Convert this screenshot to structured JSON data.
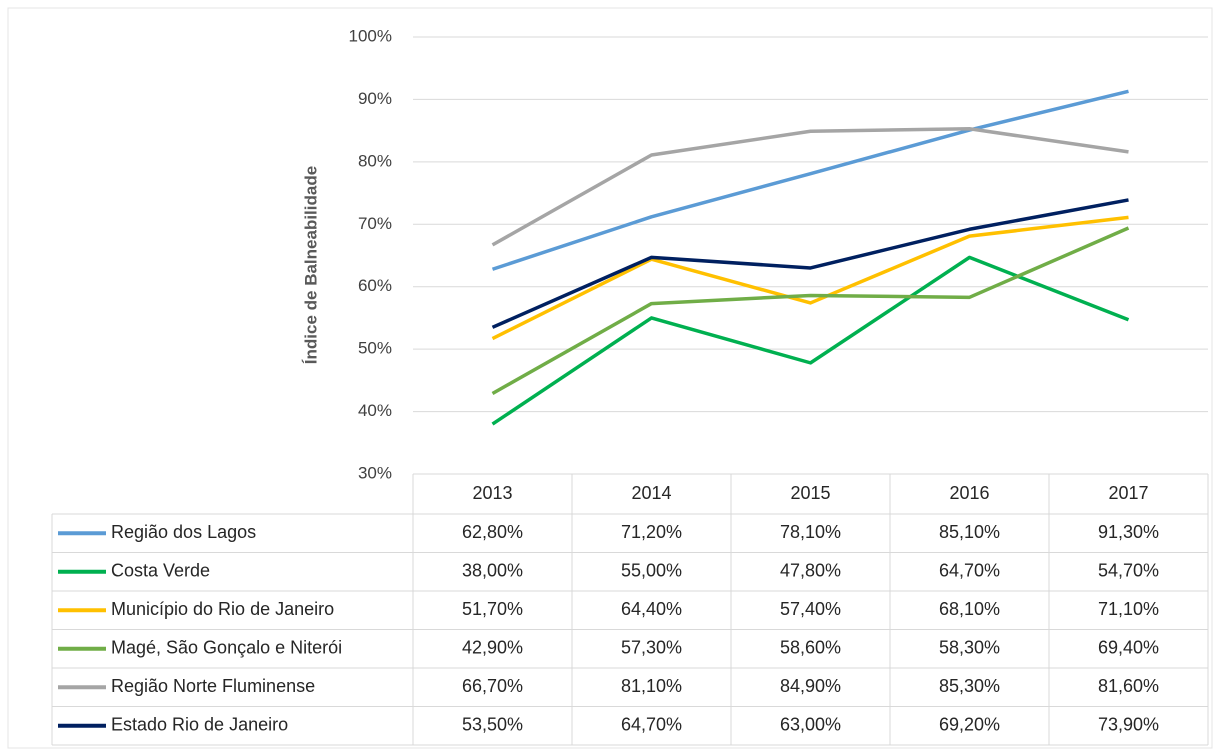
{
  "chart_data": {
    "type": "line",
    "y_label": "Índice de Balneabilidade",
    "categories": [
      "2013",
      "2014",
      "2015",
      "2016",
      "2017"
    ],
    "ylim": [
      30,
      100
    ],
    "yticks": [
      {
        "value": 30,
        "label": "30%"
      },
      {
        "value": 40,
        "label": "40%"
      },
      {
        "value": 50,
        "label": "50%"
      },
      {
        "value": 60,
        "label": "60%"
      },
      {
        "value": 70,
        "label": "70%"
      },
      {
        "value": 80,
        "label": "80%"
      },
      {
        "value": 90,
        "label": "90%"
      },
      {
        "value": 100,
        "label": "100%"
      }
    ],
    "grid": true,
    "series": [
      {
        "name": "Região dos Lagos",
        "color": "#5b9bd5",
        "values": [
          62.8,
          71.2,
          78.1,
          85.1,
          91.3
        ],
        "value_labels": [
          "62,80%",
          "71,20%",
          "78,10%",
          "85,10%",
          "91,30%"
        ]
      },
      {
        "name": "Costa Verde",
        "color": "#00b050",
        "values": [
          38.0,
          55.0,
          47.8,
          64.7,
          54.7
        ],
        "value_labels": [
          "38,00%",
          "55,00%",
          "47,80%",
          "64,70%",
          "54,70%"
        ]
      },
      {
        "name": "Município do Rio de Janeiro",
        "color": "#ffc000",
        "values": [
          51.7,
          64.4,
          57.4,
          68.1,
          71.1
        ],
        "value_labels": [
          "51,70%",
          "64,40%",
          "57,40%",
          "68,10%",
          "71,10%"
        ]
      },
      {
        "name": "Magé, São Gonçalo e Niterói",
        "color": "#70ad47",
        "values": [
          42.9,
          57.3,
          58.6,
          58.3,
          69.4
        ],
        "value_labels": [
          "42,90%",
          "57,30%",
          "58,60%",
          "58,30%",
          "69,40%"
        ]
      },
      {
        "name": "Região Norte Fluminense",
        "color": "#a5a5a5",
        "values": [
          66.7,
          81.1,
          84.9,
          85.3,
          81.6
        ],
        "value_labels": [
          "66,70%",
          "81,10%",
          "84,90%",
          "85,30%",
          "81,60%"
        ]
      },
      {
        "name": "Estado Rio de Janeiro",
        "color": "#002060",
        "values": [
          53.5,
          64.7,
          63.0,
          69.2,
          73.9
        ],
        "value_labels": [
          "53,50%",
          "64,70%",
          "63,00%",
          "69,20%",
          "73,90%"
        ]
      }
    ]
  }
}
